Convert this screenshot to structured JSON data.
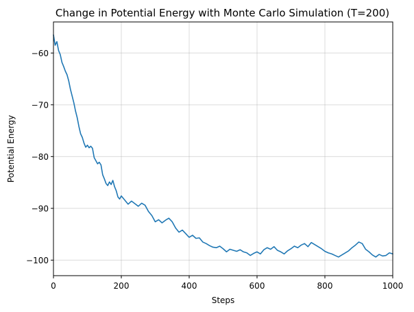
{
  "chart_data": {
    "type": "line",
    "title": "Change in Potential Energy with Monte Carlo Simulation (T=200)",
    "xlabel": "Steps",
    "ylabel": "Potential Energy",
    "xlim": [
      0,
      1000
    ],
    "ylim": [
      -103,
      -54
    ],
    "xticks": [
      0,
      200,
      400,
      600,
      800,
      1000
    ],
    "yticks": [
      -100,
      -90,
      -80,
      -70,
      -60
    ],
    "ytick_labels": [
      "−100",
      "−90",
      "−80",
      "−70",
      "−60"
    ],
    "grid": true,
    "line_color": "#1f77b4",
    "series": [
      {
        "x": [
          0,
          5,
          10,
          15,
          20,
          25,
          30,
          35,
          40,
          45,
          50,
          55,
          60,
          65,
          70,
          75,
          80,
          85,
          90,
          95,
          100,
          105,
          110,
          115,
          120,
          125,
          130,
          135,
          140,
          145,
          150,
          155,
          160,
          165,
          170,
          175,
          180,
          185,
          190,
          195,
          200,
          210,
          220,
          230,
          240,
          250,
          260,
          270,
          280,
          290,
          300,
          310,
          320,
          330,
          340,
          350,
          360,
          370,
          380,
          390,
          400,
          410,
          420,
          430,
          440,
          450,
          460,
          470,
          480,
          490,
          500,
          510,
          520,
          530,
          540,
          550,
          560,
          570,
          580,
          590,
          600,
          610,
          620,
          630,
          640,
          650,
          660,
          670,
          680,
          690,
          700,
          710,
          720,
          730,
          740,
          750,
          760,
          770,
          780,
          790,
          800,
          810,
          820,
          830,
          840,
          850,
          860,
          870,
          880,
          890,
          900,
          910,
          920,
          930,
          940,
          950,
          960,
          970,
          980,
          990,
          1000
        ],
        "y": [
          -56.5,
          -58.5,
          -57.8,
          -59.5,
          -60.3,
          -61.8,
          -62.6,
          -63.5,
          -64.2,
          -65.4,
          -67.0,
          -68.3,
          -69.6,
          -71.2,
          -72.5,
          -74.2,
          -75.6,
          -76.3,
          -77.4,
          -78.2,
          -77.8,
          -78.3,
          -78.0,
          -78.4,
          -80.2,
          -80.8,
          -81.4,
          -81.1,
          -81.6,
          -83.5,
          -84.3,
          -85.2,
          -85.6,
          -84.9,
          -85.4,
          -84.6,
          -85.8,
          -86.6,
          -87.8,
          -88.2,
          -87.6,
          -88.4,
          -89.2,
          -88.6,
          -89.1,
          -89.6,
          -89.0,
          -89.4,
          -90.6,
          -91.4,
          -92.6,
          -92.2,
          -92.8,
          -92.3,
          -91.9,
          -92.6,
          -93.8,
          -94.6,
          -94.2,
          -94.9,
          -95.6,
          -95.2,
          -95.8,
          -95.7,
          -96.5,
          -96.8,
          -97.2,
          -97.5,
          -97.6,
          -97.3,
          -97.8,
          -98.4,
          -97.9,
          -98.1,
          -98.3,
          -98.0,
          -98.4,
          -98.6,
          -99.1,
          -98.7,
          -98.4,
          -98.8,
          -98.0,
          -97.6,
          -97.9,
          -97.4,
          -98.1,
          -98.4,
          -98.8,
          -98.2,
          -97.8,
          -97.3,
          -97.6,
          -97.1,
          -96.8,
          -97.4,
          -96.6,
          -97.0,
          -97.4,
          -97.8,
          -98.3,
          -98.6,
          -98.8,
          -99.1,
          -99.4,
          -99.0,
          -98.6,
          -98.2,
          -97.6,
          -97.1,
          -96.5,
          -96.8,
          -97.9,
          -98.4,
          -99.0,
          -99.4,
          -98.9,
          -99.2,
          -99.1,
          -98.6,
          -98.8
        ]
      }
    ]
  }
}
